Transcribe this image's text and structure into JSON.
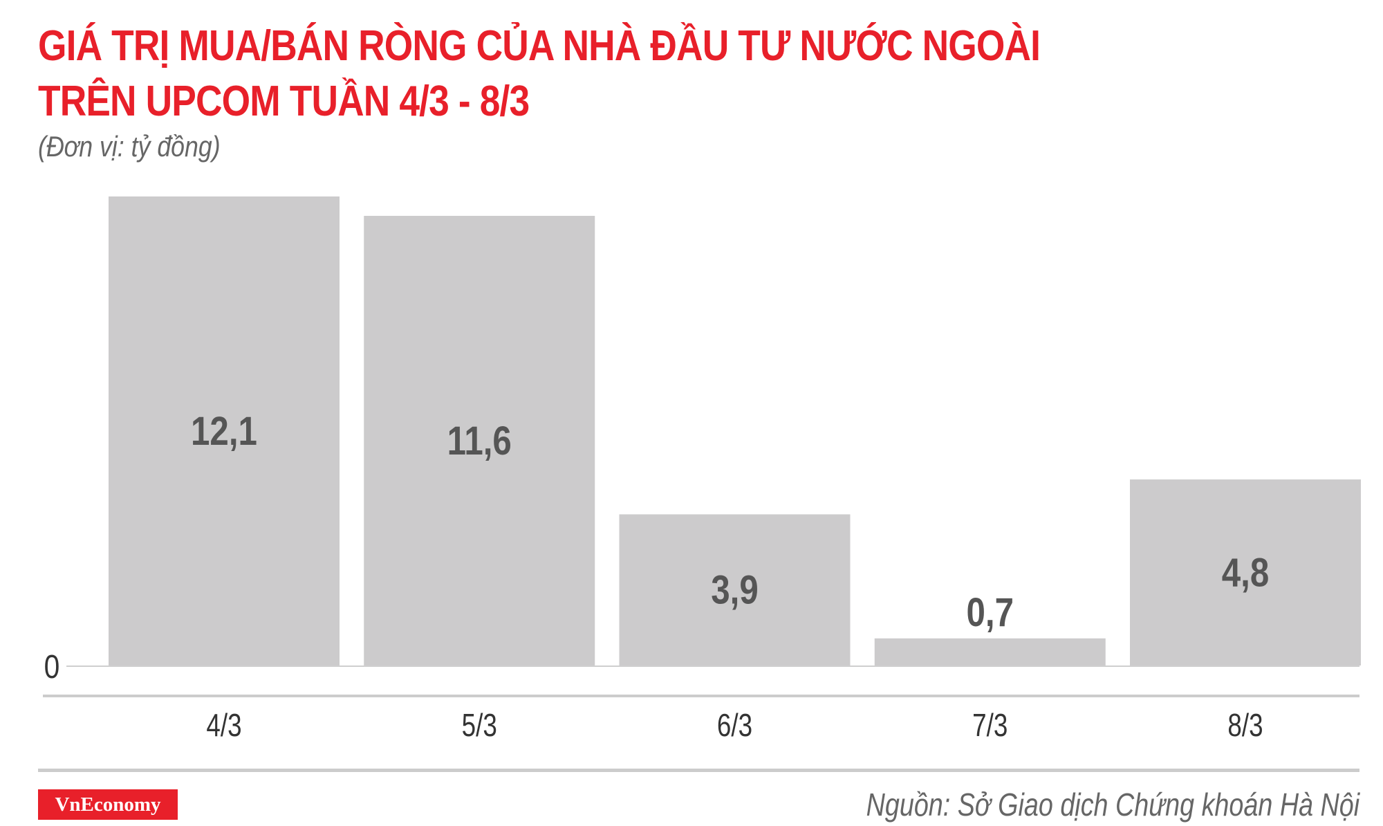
{
  "title_line1": "GIÁ TRỊ MUA/BÁN RÒNG CỦA NHÀ ĐẦU TƯ NƯỚC NGOÀI",
  "title_line2": "TRÊN UPCOM TUẦN 4/3 - 8/3",
  "subtitle": "(Đơn vị: tỷ đồng)",
  "logo": "VnEconomy",
  "source": "Nguồn: Sở Giao dịch Chứng khoán Hà Nội",
  "colors": {
    "title": "#e8202a",
    "bar": "#cccbcc",
    "label": "#555555",
    "logo_bg": "#e8202a"
  },
  "chart_data": {
    "type": "bar",
    "categories": [
      "4/3",
      "5/3",
      "6/3",
      "7/3",
      "8/3"
    ],
    "values": [
      12.1,
      11.6,
      3.9,
      0.7,
      4.8
    ],
    "data_labels": [
      "12,1",
      "11,6",
      "3,9",
      "0,7",
      "4,8"
    ],
    "y_ticks": [
      "0"
    ],
    "ylim": [
      0,
      12.1
    ],
    "grid": false,
    "legend": "none"
  }
}
